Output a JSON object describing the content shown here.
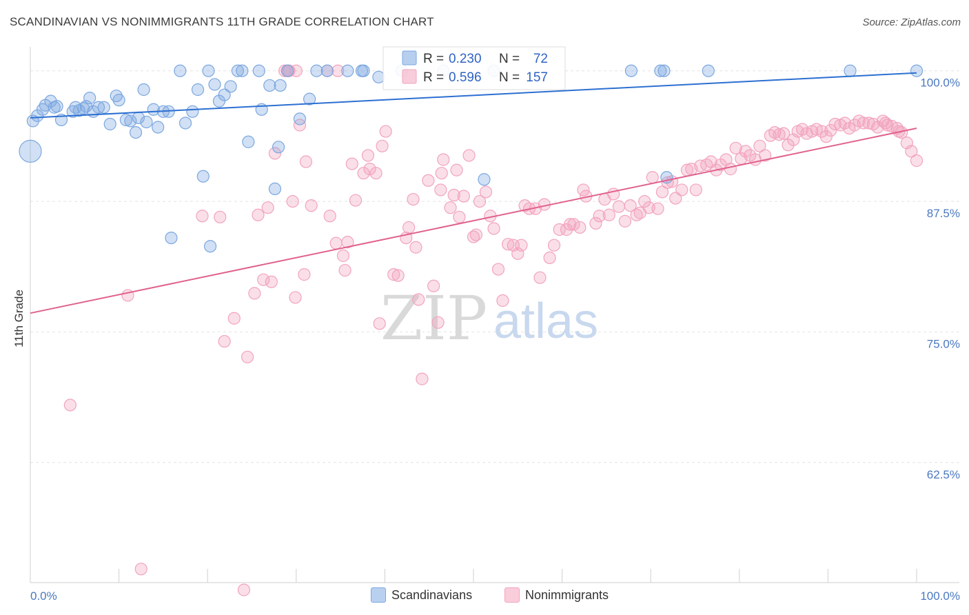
{
  "title": "SCANDINAVIAN VS NONIMMIGRANTS 11TH GRADE CORRELATION CHART",
  "source": "Source: ZipAtlas.com",
  "watermark": {
    "zip": "ZIP",
    "atlas": "atlas"
  },
  "chart_data": {
    "type": "scatter",
    "ylabel": "11th Grade",
    "xlim": [
      0,
      100
    ],
    "ylim": [
      51,
      101.5
    ],
    "x_tick_labels": {
      "left": "0.0%",
      "right": "100.0%"
    },
    "y_ticks": [
      {
        "value": 100,
        "label": "100.0%"
      },
      {
        "value": 87.5,
        "label": "87.5%"
      },
      {
        "value": 75,
        "label": "75.0%"
      },
      {
        "value": 62.5,
        "label": "62.5%"
      }
    ],
    "legend_stats": [
      {
        "r_label": "R =",
        "r_value": "0.230",
        "n_label": "N =",
        "n_value": "72"
      },
      {
        "r_label": "R =",
        "r_value": "0.596",
        "n_label": "N =",
        "n_value": "157"
      }
    ],
    "series": [
      {
        "name": "Scandinavians",
        "color": "#7ba7e0",
        "line_color": "#2c6fd1",
        "trend": [
          [
            0,
            95.5
          ],
          [
            100,
            99.8
          ]
        ],
        "points": [
          [
            0.3,
            95.2
          ],
          [
            0.8,
            95.7
          ],
          [
            1.4,
            96.3
          ],
          [
            1.7,
            96.7
          ],
          [
            2.3,
            97.1
          ],
          [
            2.7,
            96.5
          ],
          [
            3.0,
            96.6
          ],
          [
            3.5,
            95.3
          ],
          [
            4.8,
            96.1
          ],
          [
            5.1,
            96.5
          ],
          [
            5.5,
            96.2
          ],
          [
            6.0,
            96.4
          ],
          [
            6.3,
            96.6
          ],
          [
            6.7,
            97.4
          ],
          [
            7.1,
            96.1
          ],
          [
            7.7,
            96.5
          ],
          [
            8.3,
            96.5
          ],
          [
            9.0,
            94.9
          ],
          [
            9.7,
            97.6
          ],
          [
            10.0,
            97.2
          ],
          [
            10.8,
            95.3
          ],
          [
            11.3,
            95.2
          ],
          [
            11.9,
            94.1
          ],
          [
            12.2,
            95.5
          ],
          [
            12.8,
            98.2
          ],
          [
            13.1,
            95.1
          ],
          [
            13.9,
            96.3
          ],
          [
            14.4,
            94.6
          ],
          [
            15.0,
            96.1
          ],
          [
            15.6,
            96.1
          ],
          [
            16.9,
            100
          ],
          [
            17.5,
            95.0
          ],
          [
            18.3,
            96.1
          ],
          [
            18.9,
            98.2
          ],
          [
            19.5,
            89.9
          ],
          [
            20.1,
            100
          ],
          [
            20.8,
            98.7
          ],
          [
            21.3,
            97.1
          ],
          [
            21.9,
            97.7
          ],
          [
            22.6,
            98.5
          ],
          [
            23.4,
            100
          ],
          [
            23.9,
            100
          ],
          [
            24.6,
            93.2
          ],
          [
            25.8,
            100
          ],
          [
            26.1,
            96.3
          ],
          [
            27.0,
            98.6
          ],
          [
            27.6,
            88.7
          ],
          [
            28.0,
            92.7
          ],
          [
            28.2,
            98.6
          ],
          [
            29.0,
            100
          ],
          [
            30.4,
            95.4
          ],
          [
            31.5,
            97.3
          ],
          [
            32.3,
            100
          ],
          [
            33.5,
            100
          ],
          [
            35.8,
            100
          ],
          [
            37.4,
            100
          ],
          [
            37.6,
            100
          ],
          [
            39.3,
            99.4
          ],
          [
            41.9,
            100
          ],
          [
            46.6,
            100
          ],
          [
            51.2,
            89.6
          ],
          [
            52.3,
            100
          ],
          [
            67.8,
            100
          ],
          [
            71.1,
            100
          ],
          [
            71.5,
            100
          ],
          [
            71.8,
            89.8
          ],
          [
            76.5,
            100
          ],
          [
            92.5,
            100
          ],
          [
            100,
            100
          ],
          [
            15.9,
            84.0
          ],
          [
            20.3,
            83.2
          ],
          [
            0,
            92.3
          ]
        ]
      },
      {
        "name": "Nonimmigrants",
        "color": "#f2a3bd",
        "line_color": "#e0618d",
        "trend": [
          [
            0,
            76.8
          ],
          [
            100,
            94.5
          ]
        ],
        "points": [
          [
            4.5,
            68.0
          ],
          [
            11.0,
            78.5
          ],
          [
            12.5,
            52.3
          ],
          [
            19.4,
            86.1
          ],
          [
            21.4,
            86.0
          ],
          [
            21.9,
            74.1
          ],
          [
            23.0,
            76.3
          ],
          [
            24.1,
            50.3
          ],
          [
            24.5,
            72.6
          ],
          [
            25.3,
            78.7
          ],
          [
            25.7,
            86.2
          ],
          [
            26.3,
            80.0
          ],
          [
            26.8,
            86.9
          ],
          [
            27.2,
            79.8
          ],
          [
            27.6,
            92.1
          ],
          [
            28.7,
            100
          ],
          [
            29.1,
            100
          ],
          [
            29.6,
            87.5
          ],
          [
            29.9,
            78.3
          ],
          [
            30.4,
            94.8
          ],
          [
            30.9,
            80.5
          ],
          [
            31.1,
            91.3
          ],
          [
            31.7,
            87.1
          ],
          [
            33.5,
            100
          ],
          [
            33.8,
            86.1
          ],
          [
            34.5,
            83.5
          ],
          [
            35.3,
            82.3
          ],
          [
            35.5,
            80.9
          ],
          [
            35.8,
            83.6
          ],
          [
            36.3,
            91.1
          ],
          [
            36.7,
            87.6
          ],
          [
            37.6,
            90.2
          ],
          [
            38.1,
            91.9
          ],
          [
            38.3,
            90.6
          ],
          [
            39.0,
            90.2
          ],
          [
            39.4,
            75.8
          ],
          [
            39.7,
            92.8
          ],
          [
            40.1,
            94.2
          ],
          [
            41.0,
            80.5
          ],
          [
            41.5,
            80.4
          ],
          [
            42.4,
            84.0
          ],
          [
            42.7,
            85.0
          ],
          [
            43.2,
            87.7
          ],
          [
            43.5,
            83.1
          ],
          [
            43.8,
            78.1
          ],
          [
            44.2,
            70.5
          ],
          [
            44.9,
            89.5
          ],
          [
            45.5,
            79.4
          ],
          [
            46.0,
            75.9
          ],
          [
            46.3,
            88.6
          ],
          [
            46.4,
            90.2
          ],
          [
            46.6,
            91.5
          ],
          [
            47.4,
            86.9
          ],
          [
            47.8,
            88.1
          ],
          [
            48.1,
            90.5
          ],
          [
            48.4,
            86.0
          ],
          [
            48.9,
            88.0
          ],
          [
            49.5,
            91.9
          ],
          [
            50.0,
            84.1
          ],
          [
            50.3,
            84.3
          ],
          [
            50.7,
            87.5
          ],
          [
            51.4,
            88.4
          ],
          [
            51.9,
            86.1
          ],
          [
            52.3,
            84.9
          ],
          [
            52.8,
            81.0
          ],
          [
            53.3,
            78.0
          ],
          [
            53.9,
            83.4
          ],
          [
            54.5,
            83.3
          ],
          [
            55.0,
            82.5
          ],
          [
            55.4,
            83.3
          ],
          [
            55.8,
            87.1
          ],
          [
            56.3,
            86.8
          ],
          [
            57.0,
            86.8
          ],
          [
            57.5,
            80.2
          ],
          [
            58.0,
            87.2
          ],
          [
            58.6,
            82.1
          ],
          [
            59.1,
            83.3
          ],
          [
            59.7,
            84.8
          ],
          [
            60.5,
            84.8
          ],
          [
            60.9,
            85.3
          ],
          [
            61.3,
            85.3
          ],
          [
            62.0,
            85.0
          ],
          [
            62.4,
            88.6
          ],
          [
            62.7,
            88.0
          ],
          [
            63.8,
            85.4
          ],
          [
            64.2,
            86.1
          ],
          [
            64.8,
            87.7
          ],
          [
            65.3,
            86.2
          ],
          [
            65.8,
            88.2
          ],
          [
            66.4,
            87.0
          ],
          [
            67.1,
            85.6
          ],
          [
            67.7,
            87.1
          ],
          [
            68.4,
            86.2
          ],
          [
            68.8,
            86.4
          ],
          [
            69.3,
            87.5
          ],
          [
            69.8,
            86.9
          ],
          [
            70.2,
            89.8
          ],
          [
            70.8,
            86.8
          ],
          [
            71.3,
            88.4
          ],
          [
            71.9,
            89.3
          ],
          [
            72.4,
            89.4
          ],
          [
            72.8,
            87.8
          ],
          [
            73.5,
            88.6
          ],
          [
            74.1,
            90.5
          ],
          [
            74.6,
            90.6
          ],
          [
            75.1,
            88.6
          ],
          [
            75.6,
            90.9
          ],
          [
            76.3,
            91.0
          ],
          [
            76.8,
            91.3
          ],
          [
            77.4,
            90.5
          ],
          [
            77.9,
            91.0
          ],
          [
            78.5,
            91.5
          ],
          [
            79.0,
            90.6
          ],
          [
            79.6,
            92.6
          ],
          [
            80.2,
            91.6
          ],
          [
            80.7,
            92.3
          ],
          [
            81.2,
            91.9
          ],
          [
            81.8,
            91.5
          ],
          [
            82.3,
            92.8
          ],
          [
            82.9,
            91.9
          ],
          [
            83.5,
            93.8
          ],
          [
            84.0,
            94.1
          ],
          [
            84.5,
            93.9
          ],
          [
            85.0,
            94.0
          ],
          [
            85.5,
            92.9
          ],
          [
            86.1,
            93.4
          ],
          [
            86.6,
            94.2
          ],
          [
            87.1,
            94.4
          ],
          [
            87.6,
            94.0
          ],
          [
            88.2,
            94.2
          ],
          [
            88.7,
            94.4
          ],
          [
            89.3,
            94.2
          ],
          [
            89.8,
            93.7
          ],
          [
            90.3,
            94.3
          ],
          [
            90.8,
            94.9
          ],
          [
            91.4,
            94.8
          ],
          [
            91.9,
            95.0
          ],
          [
            92.4,
            94.5
          ],
          [
            93.0,
            94.8
          ],
          [
            93.5,
            95.2
          ],
          [
            94.0,
            95.0
          ],
          [
            94.6,
            95.0
          ],
          [
            95.1,
            94.9
          ],
          [
            95.6,
            94.6
          ],
          [
            96.2,
            95.2
          ],
          [
            96.7,
            94.8
          ],
          [
            97.2,
            94.7
          ],
          [
            97.8,
            94.5
          ],
          [
            98.3,
            94.1
          ],
          [
            98.9,
            93.1
          ],
          [
            99.4,
            92.3
          ],
          [
            100,
            91.4
          ],
          [
            29.2,
            100
          ],
          [
            30.0,
            100
          ],
          [
            34.7,
            100
          ],
          [
            98.0,
            94.2
          ],
          [
            96.5,
            95.0
          ]
        ]
      }
    ]
  }
}
